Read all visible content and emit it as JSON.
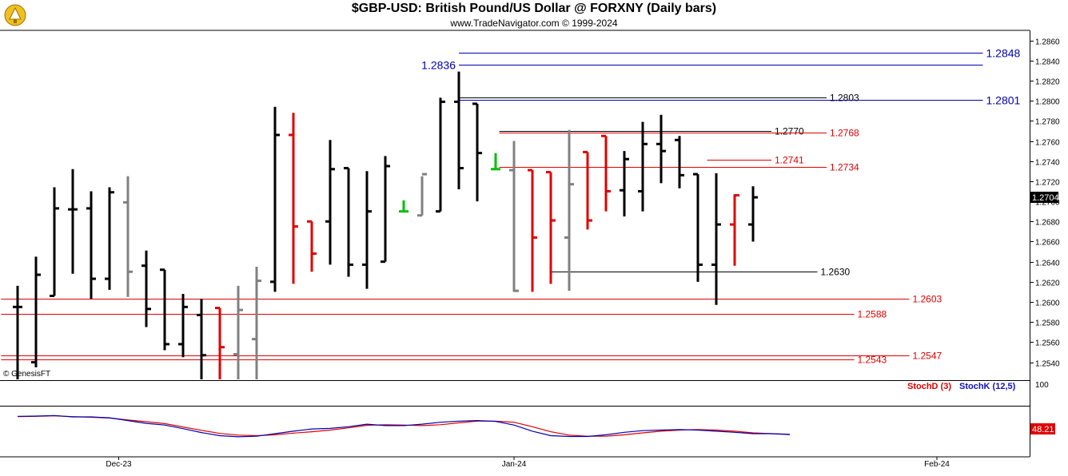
{
  "header": {
    "title": "$GBP-USD:  British Pound/US Dollar @ FORXNY  (Daily bars)",
    "subtitle": "www.TradeNavigator.com © 1999-2024",
    "watermark": "© GenesisFT"
  },
  "colors": {
    "up_bar": "#000000",
    "down_bar": "#e00000",
    "neutral_bar": "#808080",
    "green_bar": "#00c000",
    "stochD": "#e00000",
    "stochK": "#1010c0",
    "blue_line": "#0000b0",
    "red_line": "#e00000",
    "black_line": "#000000"
  },
  "chart_data": [
    {
      "type": "ohlc",
      "title": "$GBP-USD:  British Pound/US Dollar @ FORXNY  (Daily bars)",
      "ylim": [
        1.2523,
        1.287
      ],
      "y_ticks": [
        "1.2540",
        "1.2560",
        "1.2580",
        "1.2600",
        "1.2620",
        "1.2640",
        "1.2660",
        "1.2680",
        "1.2700",
        "1.2720",
        "1.2740",
        "1.2760",
        "1.2780",
        "1.2800",
        "1.2820",
        "1.2840",
        "1.2860"
      ],
      "x_ticks": [
        {
          "label": "Dec-23",
          "index": 5.5
        },
        {
          "label": "Jan-24",
          "index": 27
        },
        {
          "label": "Feb-24",
          "index": 50
        }
      ],
      "last_price_label": "1.2704",
      "bars": [
        {
          "o": 1.2595,
          "h": 1.2616,
          "l": 1.2523,
          "c": 1.2595,
          "color": "black"
        },
        {
          "o": 1.254,
          "h": 1.2645,
          "l": 1.2535,
          "c": 1.2627,
          "color": "black"
        },
        {
          "o": 1.2606,
          "h": 1.2714,
          "l": 1.2606,
          "c": 1.2693,
          "color": "black"
        },
        {
          "o": 1.2692,
          "h": 1.2732,
          "l": 1.2628,
          "c": 1.2692,
          "color": "black"
        },
        {
          "o": 1.2693,
          "h": 1.271,
          "l": 1.2603,
          "c": 1.2623,
          "color": "black"
        },
        {
          "o": 1.2623,
          "h": 1.2714,
          "l": 1.2612,
          "c": 1.2709,
          "color": "black"
        },
        {
          "o": 1.2699,
          "h": 1.2725,
          "l": 1.2605,
          "c": 1.263,
          "color": "gray"
        },
        {
          "o": 1.2636,
          "h": 1.2651,
          "l": 1.2575,
          "c": 1.2593,
          "color": "black"
        },
        {
          "o": 1.2632,
          "h": 1.2632,
          "l": 1.2552,
          "c": 1.2558,
          "color": "black"
        },
        {
          "o": 1.2558,
          "h": 1.2608,
          "l": 1.2545,
          "c": 1.2595,
          "color": "black"
        },
        {
          "o": 1.2587,
          "h": 1.2603,
          "l": 1.2523,
          "c": 1.2547,
          "color": "black"
        },
        {
          "o": 1.2594,
          "h": 1.2594,
          "l": 1.2523,
          "c": 1.2555,
          "color": "red"
        },
        {
          "o": 1.2548,
          "h": 1.2616,
          "l": 1.2523,
          "c": 1.2592,
          "color": "gray"
        },
        {
          "o": 1.2563,
          "h": 1.2635,
          "l": 1.2523,
          "c": 1.2621,
          "color": "gray"
        },
        {
          "o": 1.262,
          "h": 1.2794,
          "l": 1.261,
          "c": 1.2766,
          "color": "black"
        },
        {
          "o": 1.2766,
          "h": 1.2788,
          "l": 1.2618,
          "c": 1.2675,
          "color": "red"
        },
        {
          "o": 1.268,
          "h": 1.268,
          "l": 1.263,
          "c": 1.2648,
          "color": "red"
        },
        {
          "o": 1.268,
          "h": 1.2761,
          "l": 1.2637,
          "c": 1.2732,
          "color": "black"
        },
        {
          "o": 1.2733,
          "h": 1.2733,
          "l": 1.2625,
          "c": 1.2637,
          "color": "black"
        },
        {
          "o": 1.2637,
          "h": 1.273,
          "l": 1.2613,
          "c": 1.269,
          "color": "black"
        },
        {
          "o": 1.264,
          "h": 1.2745,
          "l": 1.264,
          "c": 1.2735,
          "color": "black"
        },
        {
          "o": 1.269,
          "h": 1.2701,
          "l": 1.269,
          "c": 1.269,
          "color": "green"
        },
        {
          "o": 1.2686,
          "h": 1.2725,
          "l": 1.2686,
          "c": 1.2727,
          "color": "gray"
        },
        {
          "o": 1.269,
          "h": 1.2803,
          "l": 1.269,
          "c": 1.2799,
          "color": "black"
        },
        {
          "o": 1.2799,
          "h": 1.2829,
          "l": 1.2712,
          "c": 1.2733,
          "color": "black"
        },
        {
          "o": 1.2797,
          "h": 1.2797,
          "l": 1.27,
          "c": 1.2748,
          "color": "black"
        },
        {
          "o": 1.2732,
          "h": 1.2748,
          "l": 1.2732,
          "c": 1.2732,
          "color": "green"
        },
        {
          "o": 1.2731,
          "h": 1.276,
          "l": 1.261,
          "c": 1.2611,
          "color": "gray"
        },
        {
          "o": 1.2731,
          "h": 1.2731,
          "l": 1.261,
          "c": 1.2664,
          "color": "red"
        },
        {
          "o": 1.2729,
          "h": 1.2729,
          "l": 1.2618,
          "c": 1.2681,
          "color": "red"
        },
        {
          "o": 1.2664,
          "h": 1.2771,
          "l": 1.2611,
          "c": 1.2717,
          "color": "gray"
        },
        {
          "o": 1.2749,
          "h": 1.2749,
          "l": 1.2672,
          "c": 1.2681,
          "color": "red"
        },
        {
          "o": 1.2765,
          "h": 1.2765,
          "l": 1.269,
          "c": 1.271,
          "color": "red"
        },
        {
          "o": 1.2711,
          "h": 1.275,
          "l": 1.2685,
          "c": 1.2742,
          "color": "black"
        },
        {
          "o": 1.271,
          "h": 1.2779,
          "l": 1.269,
          "c": 1.2757,
          "color": "black"
        },
        {
          "o": 1.2757,
          "h": 1.2786,
          "l": 1.2718,
          "c": 1.275,
          "color": "black"
        },
        {
          "o": 1.2761,
          "h": 1.2765,
          "l": 1.2713,
          "c": 1.2726,
          "color": "black"
        },
        {
          "o": 1.2727,
          "h": 1.2727,
          "l": 1.262,
          "c": 1.2637,
          "color": "black"
        },
        {
          "o": 1.2637,
          "h": 1.2728,
          "l": 1.2597,
          "c": 1.2677,
          "color": "black"
        },
        {
          "o": 1.2677,
          "h": 1.2707,
          "l": 1.2636,
          "c": 1.2706,
          "color": "red"
        },
        {
          "o": 1.2677,
          "h": 1.2715,
          "l": 1.266,
          "c": 1.2704,
          "color": "black"
        }
      ],
      "annotations": [
        {
          "value": 1.2848,
          "text": "1.2848",
          "color": "blue",
          "x0": 24.0,
          "x1": 52.5,
          "side": "right",
          "size": "big"
        },
        {
          "value": 1.2836,
          "text": "1.2836",
          "color": "blue",
          "x0": 24.0,
          "x1": 52.5,
          "side": "left",
          "size": "big"
        },
        {
          "value": 1.2803,
          "text": "1.2803",
          "color": "black",
          "x0": 24.0,
          "x1": 44.0,
          "side": "right",
          "size": "small"
        },
        {
          "value": 1.2801,
          "text": "1.2801",
          "color": "blue",
          "x0": 24.0,
          "x1": 52.5,
          "side": "right",
          "size": "big"
        },
        {
          "value": 1.277,
          "text": "1.2770",
          "color": "black",
          "x0": 26.2,
          "x1": 41.0,
          "side": "right",
          "size": "small"
        },
        {
          "value": 1.2768,
          "text": "1.2768",
          "color": "red",
          "x0": 26.2,
          "x1": 44.0,
          "side": "right",
          "size": "small"
        },
        {
          "value": 1.2741,
          "text": "1.2741",
          "color": "red",
          "x0": 37.5,
          "x1": 41.0,
          "side": "right",
          "size": "small"
        },
        {
          "value": 1.2734,
          "text": "1.2734",
          "color": "red",
          "x0": 26.2,
          "x1": 44.0,
          "side": "right",
          "size": "small"
        },
        {
          "value": 1.263,
          "text": "1.2630",
          "color": "black",
          "x0": 29.0,
          "x1": 43.5,
          "side": "right",
          "size": "small"
        },
        {
          "value": 1.2603,
          "text": "1.2603",
          "color": "red",
          "x0": -0.9,
          "x1": 48.5,
          "side": "right",
          "size": "small"
        },
        {
          "value": 1.2588,
          "text": "1.2588",
          "color": "red",
          "x0": -0.9,
          "x1": 45.5,
          "side": "right",
          "size": "small"
        },
        {
          "value": 1.2547,
          "text": "1.2547",
          "color": "red",
          "x0": -0.9,
          "x1": 48.5,
          "side": "right",
          "size": "small"
        },
        {
          "value": 1.2543,
          "text": "1.2543",
          "color": "red",
          "x0": -0.9,
          "x1": 45.5,
          "side": "right",
          "size": "small"
        }
      ]
    },
    {
      "type": "line",
      "ylim": [
        0,
        100
      ],
      "y_ticks": [
        "100"
      ],
      "last_value_label": "48.21",
      "series": [
        {
          "name": "StochD (3)",
          "color": "red",
          "values": [
            92,
            93,
            95,
            92,
            90,
            87,
            80,
            74,
            67,
            55,
            43,
            32,
            26,
            24,
            27,
            33,
            38,
            44,
            52,
            61,
            63,
            62,
            60,
            63,
            70,
            76,
            76,
            72,
            56,
            38,
            26,
            22,
            22,
            27,
            34,
            40,
            44,
            46,
            44,
            40,
            34,
            31,
            29
          ]
        },
        {
          "name": "StochK (12,5)",
          "color": "blue",
          "values": [
            93,
            94,
            96,
            91,
            91,
            88,
            78,
            68,
            62,
            49,
            35,
            24,
            20,
            22,
            31,
            40,
            48,
            50,
            56,
            65,
            60,
            60,
            65,
            72,
            76,
            78,
            75,
            62,
            40,
            24,
            21,
            21,
            27,
            36,
            42,
            44,
            46,
            44,
            40,
            36,
            31,
            31,
            28
          ]
        }
      ]
    }
  ],
  "stoch_labels": {
    "d": "StochD (3)",
    "k": "StochK (12,5)"
  }
}
